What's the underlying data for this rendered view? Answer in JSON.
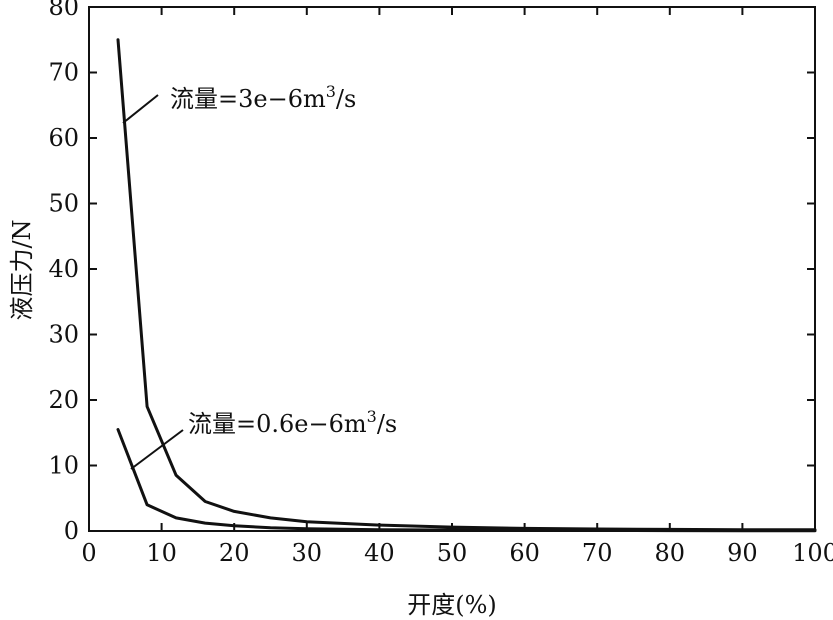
{
  "chart_data": {
    "type": "line",
    "title": "",
    "xlabel": "开度(%)",
    "ylabel": "液压力/N",
    "xlim": [
      0,
      100
    ],
    "ylim": [
      0,
      80
    ],
    "xticks": [
      "0",
      "10",
      "20",
      "30",
      "40",
      "50",
      "60",
      "70",
      "80",
      "90",
      "100"
    ],
    "yticks": [
      "0",
      "10",
      "20",
      "30",
      "40",
      "50",
      "60",
      "70",
      "80"
    ],
    "grid": false,
    "series": [
      {
        "name": "流量=3e−6m³/s",
        "x": [
          4,
          8,
          12,
          16,
          20,
          25,
          30,
          40,
          50,
          60,
          70,
          80,
          90,
          100
        ],
        "y": [
          75,
          19,
          8.5,
          4.5,
          3,
          2,
          1.4,
          0.9,
          0.6,
          0.4,
          0.3,
          0.25,
          0.2,
          0.2
        ]
      },
      {
        "name": "流量=0.6e−6m³/s",
        "x": [
          4,
          8,
          12,
          16,
          20,
          25,
          30,
          40,
          50,
          60,
          70,
          80,
          90,
          100
        ],
        "y": [
          15.5,
          4,
          2,
          1.2,
          0.8,
          0.5,
          0.35,
          0.2,
          0.15,
          0.1,
          0.08,
          0.06,
          0.05,
          0.05
        ]
      }
    ],
    "annotations": [
      {
        "text_main": "流量=3e−6m",
        "text_sup": "3",
        "text_tail": "/s",
        "series": 0
      },
      {
        "text_main": "流量=0.6e−6m",
        "text_sup": "3",
        "text_tail": "/s",
        "series": 1
      }
    ]
  }
}
